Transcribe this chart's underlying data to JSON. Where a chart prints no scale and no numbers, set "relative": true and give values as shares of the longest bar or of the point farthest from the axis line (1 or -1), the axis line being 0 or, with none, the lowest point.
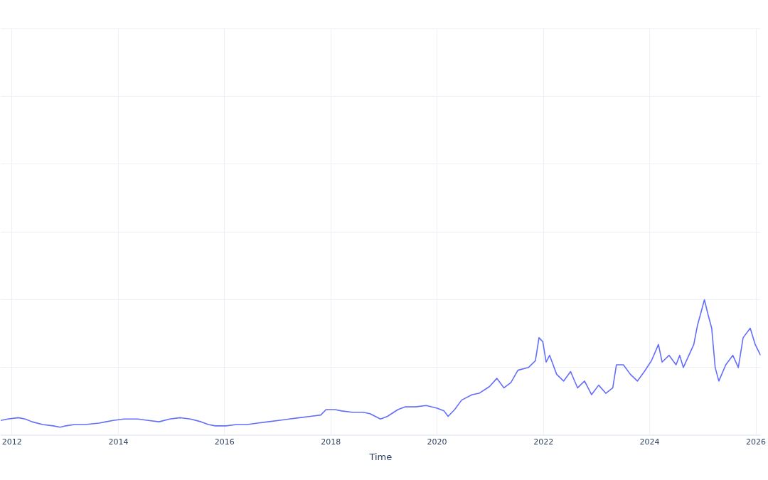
{
  "chart_data": {
    "type": "line",
    "xlabel": "Time",
    "relative": true,
    "grid": true,
    "legend": false,
    "marker": "none",
    "line_style": "solid",
    "xlim": [
      "2011-10-16",
      "2026-02-02"
    ],
    "xticks": [
      "2012",
      "2014",
      "2016",
      "2018",
      "2020",
      "2022",
      "2024",
      "2026"
    ],
    "series": [
      {
        "color": "#636efa",
        "x": [
          "2011-10-16",
          "2011-12-02",
          "2012-02-13",
          "2012-04-01",
          "2012-05-18",
          "2012-07-30",
          "2012-10-11",
          "2012-11-28",
          "2013-01-04",
          "2013-03-06",
          "2013-05-18",
          "2013-08-22",
          "2013-10-08",
          "2013-11-26",
          "2014-02-09",
          "2014-05-15",
          "2014-07-27",
          "2014-10-08",
          "2014-12-20",
          "2015-03-03",
          "2015-05-12",
          "2015-07-24",
          "2015-09-12",
          "2015-10-30",
          "2016-01-11",
          "2016-03-24",
          "2016-06-04",
          "2016-08-15",
          "2016-10-26",
          "2017-01-07",
          "2017-03-20",
          "2017-06-01",
          "2017-08-13",
          "2017-10-24",
          "2017-11-29",
          "2018-01-30",
          "2018-03-17",
          "2018-05-29",
          "2018-08-09",
          "2018-09-27",
          "2018-12-08",
          "2019-01-25",
          "2019-04-07",
          "2019-05-25",
          "2019-08-06",
          "2019-10-18",
          "2020-01-01",
          "2020-02-18",
          "2020-03-17",
          "2020-05-01",
          "2020-06-18",
          "2020-08-29",
          "2020-10-16",
          "2020-12-27",
          "2021-02-15",
          "2021-04-05",
          "2021-05-23",
          "2021-07-10",
          "2021-09-20",
          "2021-11-07",
          "2021-12-02",
          "2021-12-28",
          "2022-01-20",
          "2022-02-13",
          "2022-04-02",
          "2022-05-20",
          "2022-07-07",
          "2022-08-24",
          "2022-10-11",
          "2022-11-28",
          "2023-01-16",
          "2023-03-06",
          "2023-04-23",
          "2023-05-18",
          "2023-07-05",
          "2023-08-22",
          "2023-10-09",
          "2023-11-26",
          "2024-01-14",
          "2024-03-02",
          "2024-03-27",
          "2024-05-14",
          "2024-07-01",
          "2024-07-26",
          "2024-08-20",
          "2024-10-31",
          "2024-11-25",
          "2025-01-12",
          "2025-02-06",
          "2025-03-03",
          "2025-03-27",
          "2025-04-21",
          "2025-06-08",
          "2025-07-26",
          "2025-09-02",
          "2025-10-05",
          "2025-11-23",
          "2025-12-27",
          "2026-02-02"
        ],
        "values": [
          0.11,
          0.12,
          0.13,
          0.12,
          0.1,
          0.08,
          0.07,
          0.06,
          0.07,
          0.08,
          0.08,
          0.09,
          0.1,
          0.11,
          0.12,
          0.12,
          0.11,
          0.1,
          0.12,
          0.13,
          0.12,
          0.1,
          0.08,
          0.07,
          0.07,
          0.08,
          0.08,
          0.09,
          0.1,
          0.11,
          0.12,
          0.13,
          0.14,
          0.15,
          0.19,
          0.19,
          0.18,
          0.17,
          0.17,
          0.16,
          0.12,
          0.14,
          0.19,
          0.21,
          0.21,
          0.22,
          0.2,
          0.18,
          0.14,
          0.19,
          0.26,
          0.3,
          0.31,
          0.36,
          0.42,
          0.35,
          0.39,
          0.48,
          0.5,
          0.55,
          0.72,
          0.69,
          0.54,
          0.59,
          0.45,
          0.4,
          0.47,
          0.35,
          0.4,
          0.3,
          0.37,
          0.31,
          0.35,
          0.52,
          0.52,
          0.45,
          0.4,
          0.47,
          0.55,
          0.67,
          0.54,
          0.59,
          0.52,
          0.59,
          0.5,
          0.67,
          0.81,
          1,
          0.89,
          0.79,
          0.5,
          0.4,
          0.52,
          0.59,
          0.5,
          0.72,
          0.79,
          0.67,
          0.59
        ]
      }
    ]
  }
}
